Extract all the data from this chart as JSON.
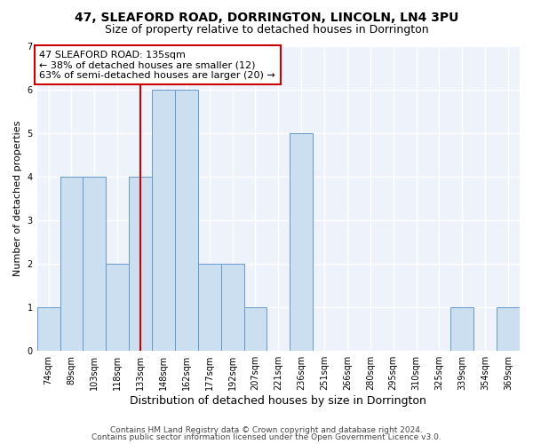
{
  "title1": "47, SLEAFORD ROAD, DORRINGTON, LINCOLN, LN4 3PU",
  "title2": "Size of property relative to detached houses in Dorrington",
  "xlabel": "Distribution of detached houses by size in Dorrington",
  "ylabel": "Number of detached properties",
  "categories": [
    "74sqm",
    "89sqm",
    "103sqm",
    "118sqm",
    "133sqm",
    "148sqm",
    "162sqm",
    "177sqm",
    "192sqm",
    "207sqm",
    "221sqm",
    "236sqm",
    "251sqm",
    "266sqm",
    "280sqm",
    "295sqm",
    "310sqm",
    "325sqm",
    "339sqm",
    "354sqm",
    "369sqm"
  ],
  "values": [
    1,
    4,
    4,
    2,
    4,
    6,
    6,
    2,
    2,
    1,
    0,
    5,
    0,
    0,
    0,
    0,
    0,
    0,
    1,
    0,
    1
  ],
  "bar_color": "#ccdff0",
  "bar_edge_color": "#6699cc",
  "highlight_index": 4,
  "highlight_line_color": "#cc0000",
  "annotation_text": "47 SLEAFORD ROAD: 135sqm\n← 38% of detached houses are smaller (12)\n63% of semi-detached houses are larger (20) →",
  "annotation_box_color": "#ffffff",
  "annotation_box_edge_color": "#cc0000",
  "footer1": "Contains HM Land Registry data © Crown copyright and database right 2024.",
  "footer2": "Contains public sector information licensed under the Open Government Licence v3.0.",
  "ylim": [
    0,
    7
  ],
  "yticks": [
    0,
    1,
    2,
    3,
    4,
    5,
    6,
    7
  ],
  "background_color": "#eef2fb",
  "grid_color": "#ffffff",
  "title_fontsize": 10,
  "subtitle_fontsize": 9,
  "xlabel_fontsize": 9,
  "ylabel_fontsize": 8,
  "tick_fontsize": 7,
  "annotation_fontsize": 8,
  "footer_fontsize": 6.5
}
